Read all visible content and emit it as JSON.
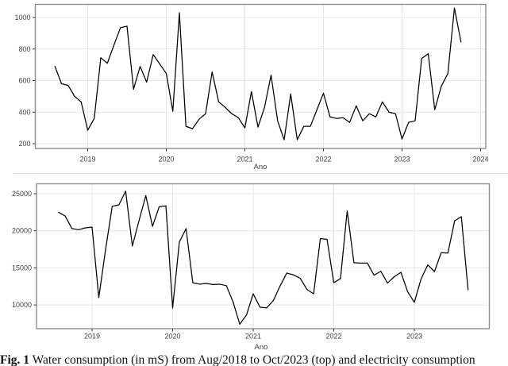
{
  "figure": {
    "caption_label": "Fig. 1",
    "caption_text": " Water consumption (in mS) from Aug/2018 to Oct/2023 (top) and electricity consumption"
  },
  "colors": {
    "line": "#000000",
    "grid": "#e7e7e7",
    "panel_border": "#8f8f8f",
    "axis_text": "#404040",
    "background": "#ffffff"
  },
  "chart_data": [
    {
      "type": "line",
      "title": "",
      "xlabel": "Ano",
      "ylabel": "",
      "grid": true,
      "legend": "none",
      "x_start": {
        "year": 2018,
        "month": "Aug"
      },
      "x_end": {
        "year": 2023,
        "month": "Oct"
      },
      "x_tick_labels": [
        "2019",
        "2020",
        "2021",
        "2022",
        "2023",
        "2024"
      ],
      "y_ticks": [
        200,
        400,
        600,
        800,
        1000
      ],
      "ylim": [
        170,
        1080
      ],
      "xlim_years": [
        2018.33,
        2024.08
      ],
      "series": [
        {
          "name": "water_consumption_m3_monthly",
          "values": [
            690,
            580,
            570,
            500,
            465,
            285,
            360,
            745,
            710,
            825,
            935,
            945,
            545,
            690,
            590,
            765,
            705,
            645,
            405,
            1030,
            310,
            295,
            355,
            390,
            655,
            465,
            430,
            390,
            365,
            300,
            530,
            305,
            430,
            635,
            345,
            225,
            515,
            225,
            310,
            310,
            415,
            520,
            370,
            360,
            365,
            335,
            440,
            345,
            390,
            370,
            465,
            400,
            390,
            230,
            335,
            345,
            740,
            770,
            415,
            565,
            645,
            1060,
            845
          ]
        }
      ]
    },
    {
      "type": "line",
      "title": "",
      "xlabel": "Ano",
      "ylabel": "",
      "grid": true,
      "legend": "none",
      "x_start": {
        "year": 2018,
        "month": "Aug"
      },
      "x_end": {
        "year": 2023,
        "month": "Sep"
      },
      "x_tick_labels": [
        "2019",
        "2020",
        "2021",
        "2022",
        "2023"
      ],
      "y_ticks": [
        10000,
        15000,
        20000,
        25000
      ],
      "ylim": [
        6800,
        26300
      ],
      "xlim_years": [
        2018.3,
        2023.97
      ],
      "series": [
        {
          "name": "electricity_consumption_monthly",
          "values": [
            22500,
            22000,
            20300,
            20150,
            20400,
            20500,
            11000,
            17400,
            23300,
            23500,
            25350,
            17950,
            21400,
            24750,
            20600,
            23250,
            23350,
            9600,
            18500,
            20300,
            13000,
            12800,
            12900,
            12750,
            12800,
            12600,
            10400,
            7400,
            8650,
            11500,
            9700,
            9600,
            10600,
            12550,
            14300,
            14050,
            13600,
            12100,
            11500,
            18950,
            18850,
            13000,
            13550,
            22700,
            15700,
            15650,
            15650,
            14000,
            14550,
            12950,
            13800,
            14400,
            11800,
            10350,
            13500,
            15400,
            14500,
            17050,
            17000,
            21350,
            21900,
            12050
          ]
        }
      ]
    }
  ]
}
